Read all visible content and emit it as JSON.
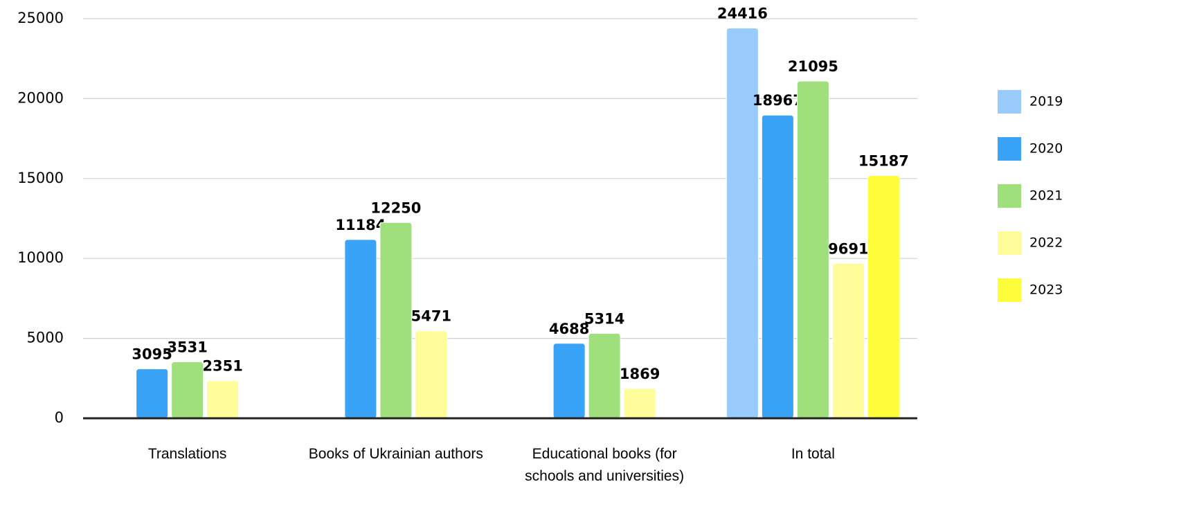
{
  "chart_data": {
    "type": "bar",
    "categories": [
      "Translations",
      "Books of Ukrainian authors",
      "Educational books (for schools and universities)",
      "In total"
    ],
    "series": [
      {
        "name": "2019",
        "color": "#99cbfd",
        "values": [
          null,
          null,
          null,
          24416
        ]
      },
      {
        "name": "2020",
        "color": "#38a3f7",
        "values": [
          3095,
          11184,
          4688,
          18967
        ]
      },
      {
        "name": "2021",
        "color": "#a0e07c",
        "values": [
          3531,
          12250,
          5314,
          21095
        ]
      },
      {
        "name": "2022",
        "color": "#fffd99",
        "values": [
          2351,
          5471,
          1869,
          9691
        ]
      },
      {
        "name": "2023",
        "color": "#fffd3a",
        "values": [
          null,
          null,
          null,
          15187
        ]
      }
    ],
    "ylim": [
      0,
      25000
    ],
    "yticks": [
      0,
      5000,
      10000,
      15000,
      20000,
      25000
    ],
    "grid": true,
    "legend": "right"
  }
}
